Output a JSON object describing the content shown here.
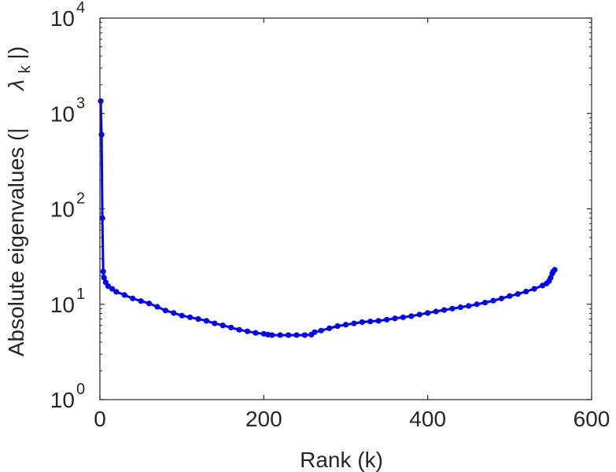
{
  "chart_data": {
    "type": "line",
    "xlabel": "Rank (k)",
    "ylabel_prefix": "Absolute eigenvalues (|",
    "ylabel_symbol": "λ",
    "ylabel_subscript": "k",
    "ylabel_suffix": "|)",
    "xlim": [
      0,
      600
    ],
    "ylim": [
      1,
      10000
    ],
    "yscale": "log",
    "x_ticks": [
      {
        "value": 0,
        "label": "0"
      },
      {
        "value": 200,
        "label": "200"
      },
      {
        "value": 400,
        "label": "400"
      },
      {
        "value": 600,
        "label": "600"
      }
    ],
    "y_ticks": [
      {
        "value": 1,
        "base": "10",
        "exp": "0"
      },
      {
        "value": 10,
        "base": "10",
        "exp": "1"
      },
      {
        "value": 100,
        "base": "10",
        "exp": "2"
      },
      {
        "value": 1000,
        "base": "10",
        "exp": "3"
      },
      {
        "value": 10000,
        "base": "10",
        "exp": "4"
      }
    ],
    "grid": false,
    "color": "#0000ff",
    "series": [
      {
        "x": [
          1,
          2,
          3,
          4,
          5,
          7,
          10,
          15,
          20,
          30,
          40,
          50,
          60,
          70,
          80,
          90,
          100,
          110,
          120,
          130,
          140,
          150,
          160,
          170,
          180,
          190,
          200,
          205,
          210,
          220,
          230,
          240,
          250,
          258,
          262,
          270,
          280,
          290,
          300,
          310,
          320,
          330,
          340,
          350,
          360,
          370,
          380,
          390,
          400,
          410,
          420,
          430,
          440,
          450,
          460,
          470,
          480,
          490,
          500,
          510,
          520,
          530,
          540,
          545,
          548,
          550,
          552,
          553,
          555
        ],
        "y": [
          1350,
          600,
          80,
          22,
          19,
          17,
          15.5,
          14.5,
          13.5,
          12.5,
          11.5,
          10.8,
          10.2,
          9.4,
          8.6,
          8.1,
          7.6,
          7.3,
          7.0,
          6.7,
          6.3,
          6.0,
          5.7,
          5.4,
          5.2,
          5.0,
          4.9,
          4.8,
          4.75,
          4.75,
          4.75,
          4.75,
          4.75,
          4.8,
          5.1,
          5.3,
          5.6,
          5.9,
          6.1,
          6.3,
          6.5,
          6.6,
          6.7,
          6.9,
          7.1,
          7.3,
          7.5,
          7.8,
          8.1,
          8.4,
          8.7,
          9.0,
          9.3,
          9.6,
          10.0,
          10.4,
          10.9,
          11.5,
          12.2,
          12.8,
          13.6,
          14.5,
          15.7,
          16.5,
          17.5,
          19.0,
          21.0,
          22.0,
          23.0
        ]
      }
    ]
  }
}
